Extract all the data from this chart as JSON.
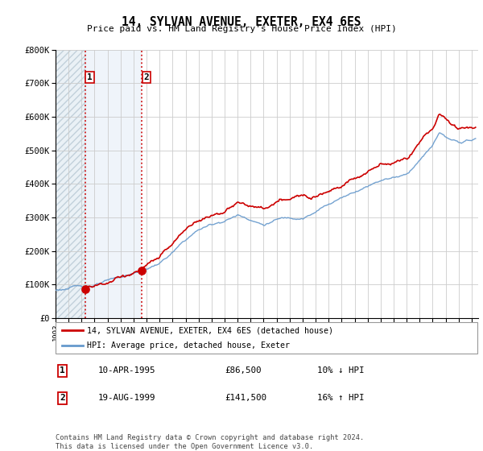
{
  "title": "14, SYLVAN AVENUE, EXETER, EX4 6ES",
  "subtitle": "Price paid vs. HM Land Registry's House Price Index (HPI)",
  "legend_line1": "14, SYLVAN AVENUE, EXETER, EX4 6ES (detached house)",
  "legend_line2": "HPI: Average price, detached house, Exeter",
  "transaction1_date": "10-APR-1995",
  "transaction1_price": "£86,500",
  "transaction1_hpi": "10% ↓ HPI",
  "transaction2_date": "19-AUG-1999",
  "transaction2_price": "£141,500",
  "transaction2_hpi": "16% ↑ HPI",
  "footer": "Contains HM Land Registry data © Crown copyright and database right 2024.\nThis data is licensed under the Open Government Licence v3.0.",
  "line_color_price": "#cc0000",
  "line_color_hpi": "#6699cc",
  "transaction1_x": 1995.27,
  "transaction1_y": 86500,
  "transaction2_x": 1999.63,
  "transaction2_y": 141500,
  "ylim": [
    0,
    800000
  ],
  "xlim_start": 1993,
  "xlim_end": 2025.5,
  "vline_color": "#cc0000",
  "hatch_region_end": 1995.27,
  "blue_region_start": 1995.27,
  "blue_region_end": 1999.63
}
